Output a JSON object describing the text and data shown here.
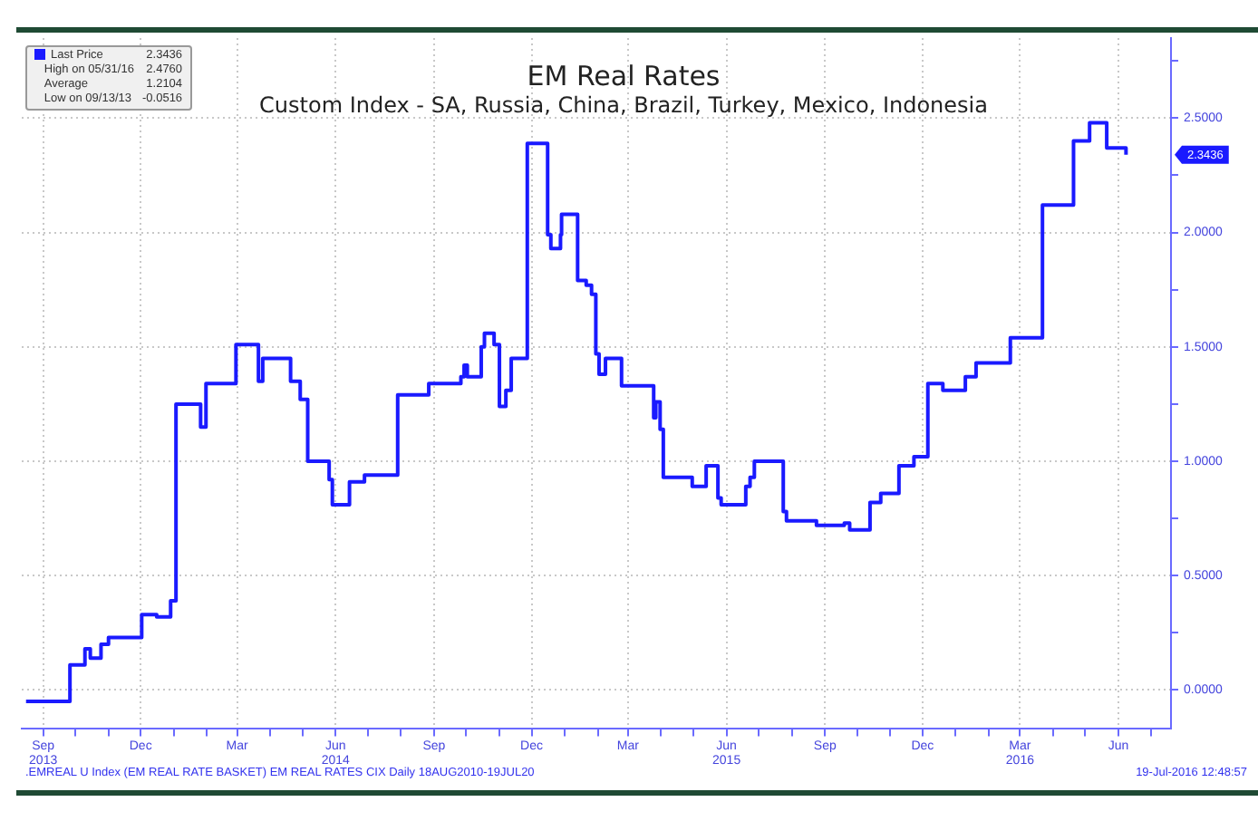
{
  "chart_data": {
    "type": "step",
    "title": "EM Real Rates",
    "subtitle": "Custom Index - SA, Russia, China, Brazil, Turkey, Mexico, Indonesia",
    "x": [
      "2013-08-16",
      "2013-09-16",
      "2013-09-26",
      "2013-10-10",
      "2013-10-15",
      "2013-10-25",
      "2013-11-01",
      "2013-12-02",
      "2013-12-16",
      "2013-12-29",
      "2014-01-03",
      "2014-01-26",
      "2014-01-31",
      "2014-02-28",
      "2014-03-21",
      "2014-03-25",
      "2014-04-20",
      "2014-04-29",
      "2014-05-06",
      "2014-05-26",
      "2014-05-29",
      "2014-06-14",
      "2014-06-28",
      "2014-07-29",
      "2014-08-27",
      "2014-09-26",
      "2014-09-29",
      "2014-10-02",
      "2014-10-15",
      "2014-10-18",
      "2014-10-27",
      "2014-11-01",
      "2014-11-07",
      "2014-11-12",
      "2014-11-27",
      "2014-12-16",
      "2014-12-19",
      "2014-12-28",
      "2014-12-29",
      "2015-01-13",
      "2015-01-21",
      "2015-01-26",
      "2015-01-30",
      "2015-02-02",
      "2015-02-08",
      "2015-02-23",
      "2015-03-25",
      "2015-03-27",
      "2015-03-31",
      "2015-04-03",
      "2015-04-30",
      "2015-05-13",
      "2015-05-24",
      "2015-05-27",
      "2015-06-19",
      "2015-06-23",
      "2015-06-27",
      "2015-07-24",
      "2015-07-27",
      "2015-08-24",
      "2015-09-19",
      "2015-09-24",
      "2015-10-13",
      "2015-10-23",
      "2015-11-09",
      "2015-11-23",
      "2015-12-06",
      "2015-12-20",
      "2016-01-10",
      "2016-01-20",
      "2016-02-21",
      "2016-03-22",
      "2016-04-20",
      "2016-05-05",
      "2016-05-21",
      "2016-06-08"
    ],
    "series": [
      {
        "name": "Last Price",
        "color": "#1a1aff",
        "values": [
          -0.05,
          -0.05,
          0.11,
          0.18,
          0.14,
          0.2,
          0.23,
          0.33,
          0.32,
          0.39,
          1.25,
          1.15,
          1.34,
          1.51,
          1.35,
          1.45,
          1.35,
          1.27,
          1.0,
          0.92,
          0.81,
          0.91,
          0.94,
          1.29,
          1.34,
          1.37,
          1.42,
          1.37,
          1.5,
          1.56,
          1.51,
          1.24,
          1.31,
          1.45,
          2.39,
          1.99,
          1.93,
          1.99,
          2.08,
          1.79,
          1.77,
          1.73,
          1.47,
          1.38,
          1.45,
          1.33,
          1.19,
          1.26,
          1.14,
          0.93,
          0.89,
          0.98,
          0.84,
          0.81,
          0.89,
          0.93,
          1.0,
          0.78,
          0.74,
          0.72,
          0.73,
          0.7,
          0.82,
          0.86,
          0.98,
          1.02,
          1.34,
          1.31,
          1.37,
          1.43,
          1.54,
          2.12,
          2.4,
          2.48,
          2.37,
          2.34
        ]
      }
    ],
    "xlim": [
      "2013-08-12",
      "2016-07-20"
    ],
    "xticks": [
      {
        "value": "2013-09-01",
        "label": "Sep\n2013"
      },
      {
        "value": "2013-10-01",
        "label": null
      },
      {
        "value": "2013-11-01",
        "label": null
      },
      {
        "value": "2013-12-01",
        "label": "Dec"
      },
      {
        "value": "2014-01-01",
        "label": null
      },
      {
        "value": "2014-02-01",
        "label": null
      },
      {
        "value": "2014-03-01",
        "label": "Mar"
      },
      {
        "value": "2014-04-01",
        "label": null
      },
      {
        "value": "2014-05-01",
        "label": null
      },
      {
        "value": "2014-06-01",
        "label": "Jun\n2014"
      },
      {
        "value": "2014-07-01",
        "label": null
      },
      {
        "value": "2014-08-01",
        "label": null
      },
      {
        "value": "2014-09-01",
        "label": "Sep"
      },
      {
        "value": "2014-10-01",
        "label": null
      },
      {
        "value": "2014-11-01",
        "label": null
      },
      {
        "value": "2014-12-01",
        "label": "Dec"
      },
      {
        "value": "2015-01-01",
        "label": null
      },
      {
        "value": "2015-02-01",
        "label": null
      },
      {
        "value": "2015-03-01",
        "label": "Mar"
      },
      {
        "value": "2015-04-01",
        "label": null
      },
      {
        "value": "2015-05-01",
        "label": null
      },
      {
        "value": "2015-06-01",
        "label": "Jun\n2015"
      },
      {
        "value": "2015-07-01",
        "label": null
      },
      {
        "value": "2015-08-01",
        "label": null
      },
      {
        "value": "2015-09-01",
        "label": "Sep"
      },
      {
        "value": "2015-10-01",
        "label": null
      },
      {
        "value": "2015-11-01",
        "label": null
      },
      {
        "value": "2015-12-01",
        "label": "Dec"
      },
      {
        "value": "2016-01-01",
        "label": null
      },
      {
        "value": "2016-02-01",
        "label": null
      },
      {
        "value": "2016-03-01",
        "label": "Mar\n2016"
      },
      {
        "value": "2016-04-01",
        "label": null
      },
      {
        "value": "2016-05-01",
        "label": null
      },
      {
        "value": "2016-06-01",
        "label": "Jun"
      },
      {
        "value": "2016-07-01",
        "label": null
      }
    ],
    "ylim": [
      -0.17,
      2.85
    ],
    "yticks": [
      {
        "value": 0,
        "label": "0.0000"
      },
      {
        "value": 0.25,
        "label": null
      },
      {
        "value": 0.5,
        "label": "0.5000"
      },
      {
        "value": 0.75,
        "label": null
      },
      {
        "value": 1,
        "label": "1.0000"
      },
      {
        "value": 1.25,
        "label": null
      },
      {
        "value": 1.5,
        "label": "1.5000"
      },
      {
        "value": 1.75,
        "label": null
      },
      {
        "value": 2,
        "label": "2.0000"
      },
      {
        "value": 2.25,
        "label": null
      },
      {
        "value": 2.5,
        "label": "2.5000"
      },
      {
        "value": 2.75,
        "label": null
      }
    ],
    "grid": true,
    "legend": "top left",
    "marker": "none",
    "line_style": "solid",
    "annotations": [
      "2.3436",
      "High on 05/31/16 2.4760",
      "Average 1.2104",
      "Low on 09/13/13 -0.0516",
      "2.3436",
      ".EMREAL U Index (EM REAL RATE BASKET) EM REAL RATES CIX  Daily 18AUG2010-19JUL20",
      "19-Jul-2016 12:48:57"
    ]
  }
}
